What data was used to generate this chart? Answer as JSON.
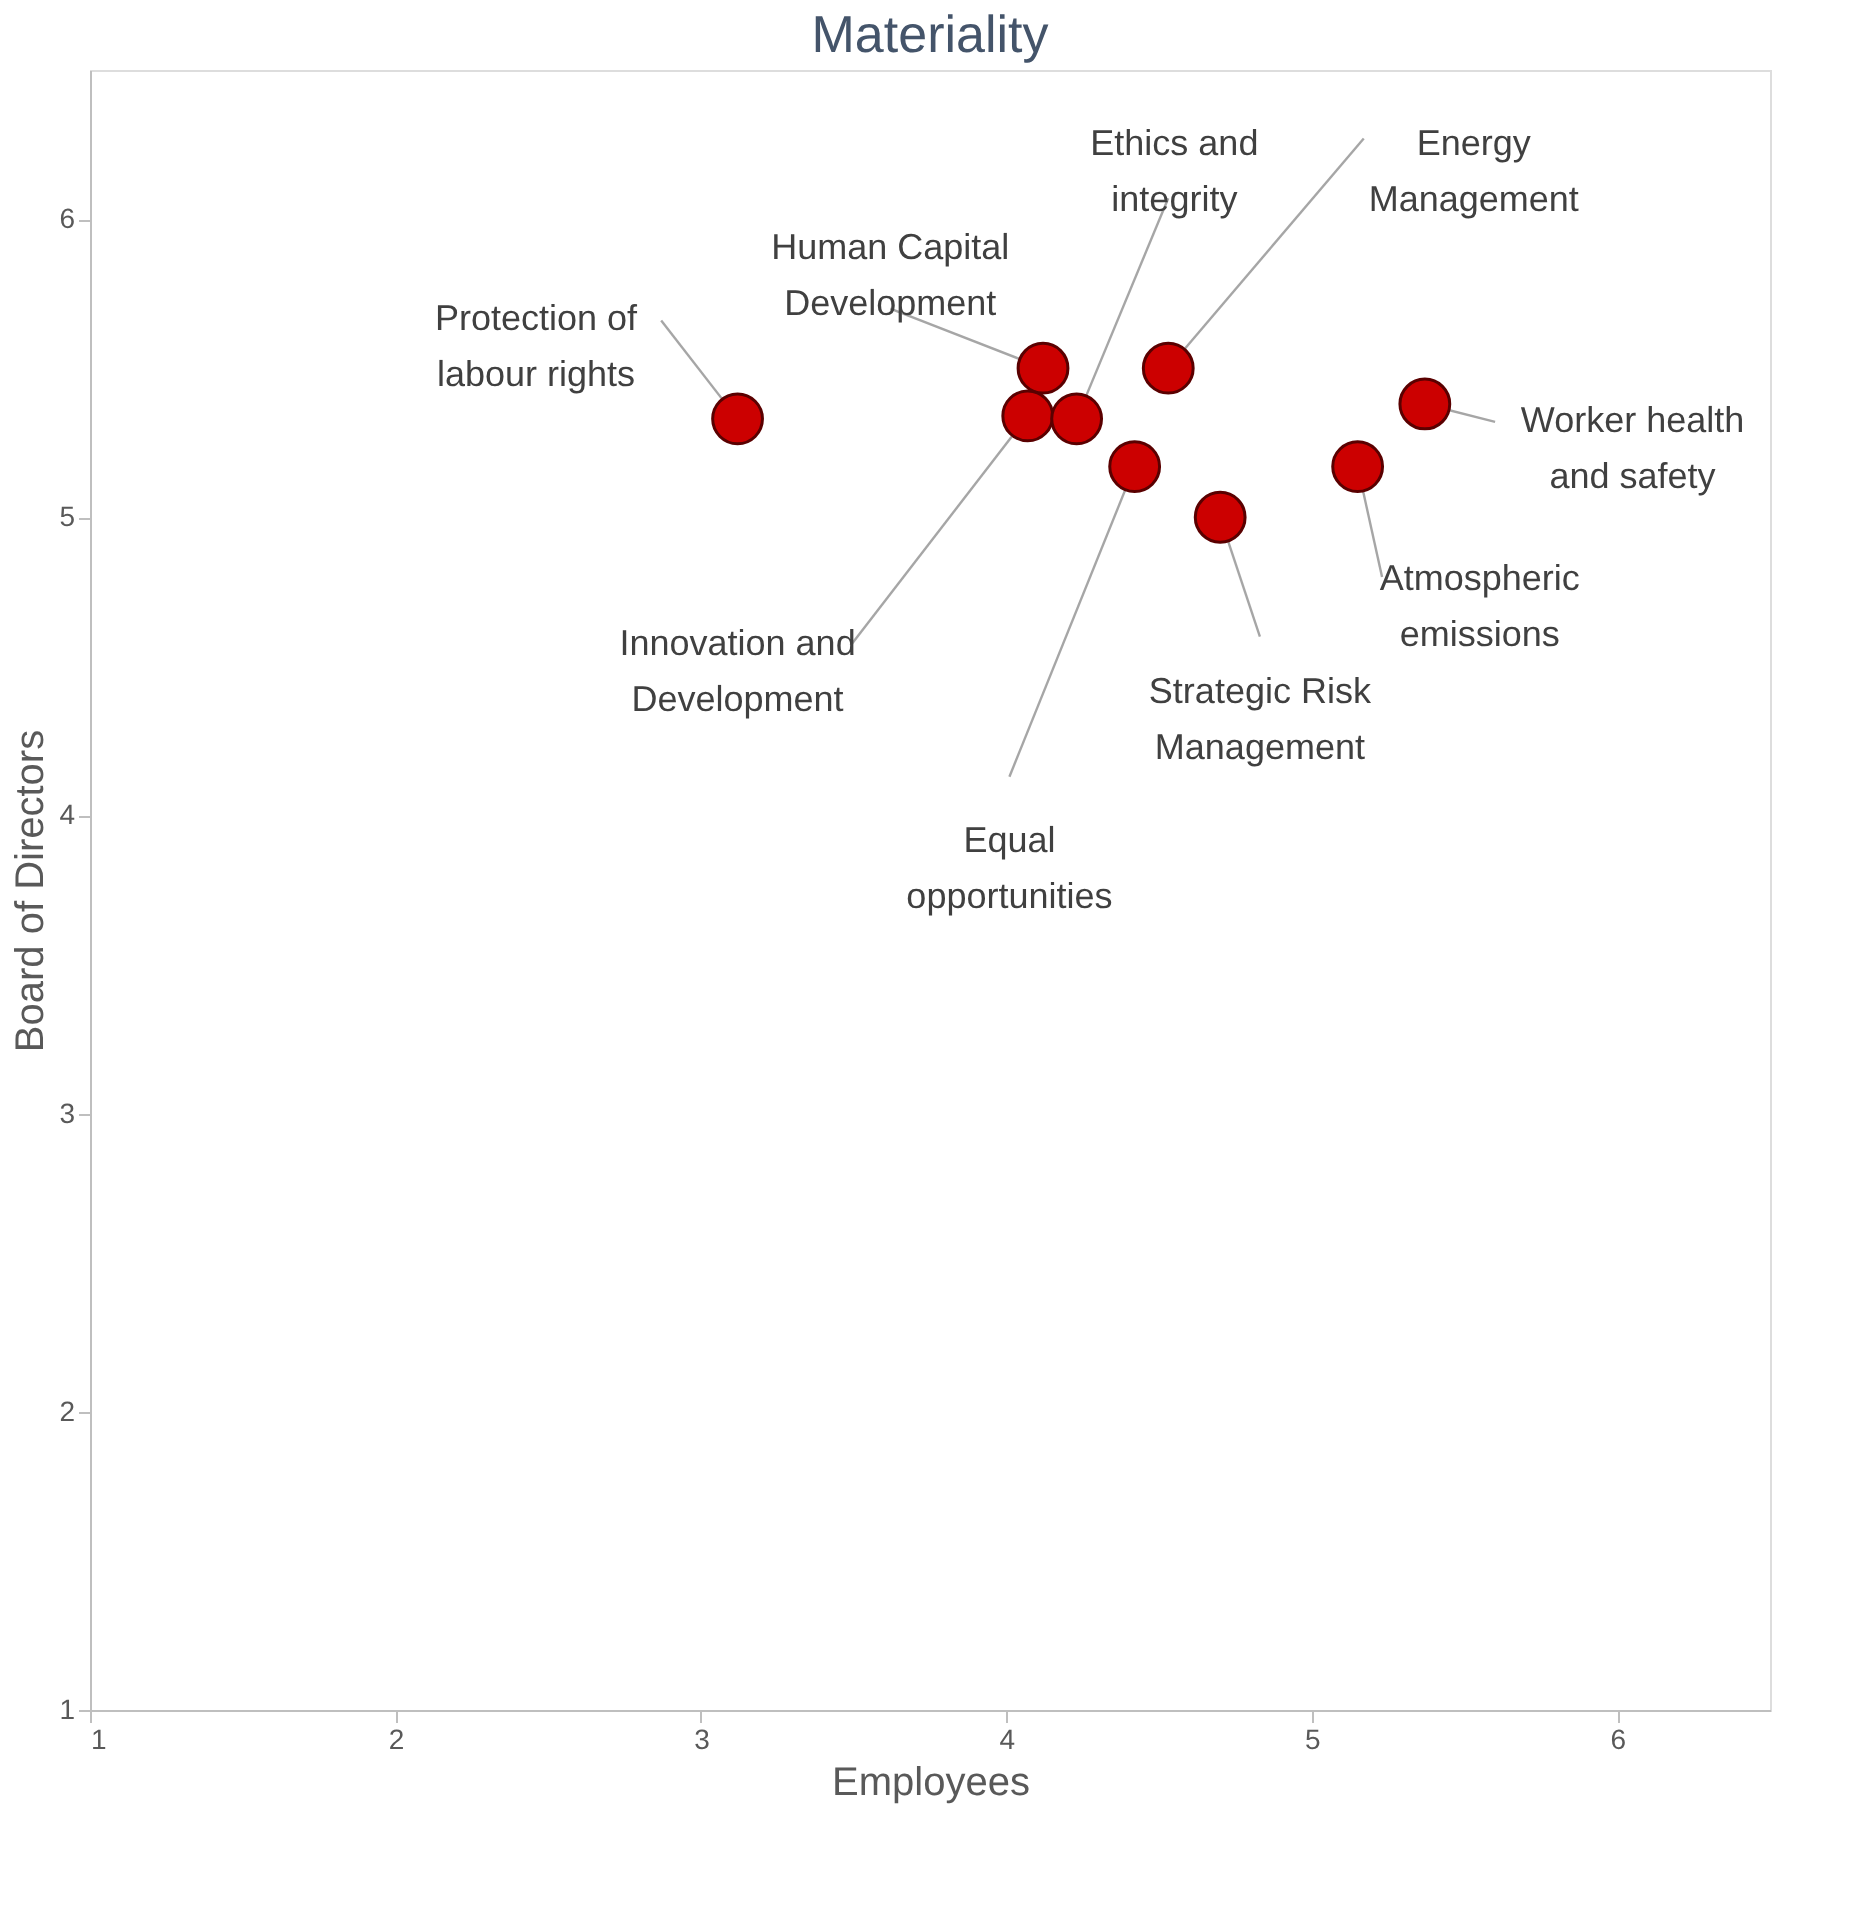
{
  "chart_data": {
    "type": "scatter",
    "title": "Materiality",
    "xlabel": "Employees",
    "ylabel": "Board of Directors",
    "x": [
      3.12,
      4.12,
      4.07,
      4.23,
      4.53,
      4.42,
      4.7,
      5.15,
      5.37
    ],
    "series": [
      {
        "color": "#cc0000",
        "values": [
          5.33,
          5.5,
          5.34,
          5.33,
          5.5,
          5.17,
          5.0,
          5.17,
          5.38
        ]
      }
    ],
    "xlim": [
      1,
      6.5
    ],
    "ylim": [
      1,
      6.5
    ],
    "xticks": [
      1,
      2,
      3,
      4,
      5,
      6
    ],
    "yticks": [
      1,
      2,
      3,
      4,
      5,
      6
    ],
    "grid": false,
    "marker": "circle",
    "annotations": [
      {
        "text": "Protection of\nlabour rights",
        "x": 3.12,
        "y": 5.33
      },
      {
        "text": "Human Capital\nDevelopment",
        "x": 4.12,
        "y": 5.5
      },
      {
        "text": "Innovation and\nDevelopment",
        "x": 4.07,
        "y": 5.34
      },
      {
        "text": "Ethics and\nintegrity",
        "x": 4.23,
        "y": 5.33
      },
      {
        "text": "Energy\nManagement",
        "x": 4.53,
        "y": 5.5
      },
      {
        "text": "Equal\nopportunities",
        "x": 4.42,
        "y": 5.17
      },
      {
        "text": "Strategic Risk\nManagement",
        "x": 4.7,
        "y": 5.0
      },
      {
        "text": "Atmospheric\nemissions",
        "x": 5.15,
        "y": 5.17
      },
      {
        "text": "Worker health\nand safety",
        "x": 5.37,
        "y": 5.38
      }
    ]
  }
}
